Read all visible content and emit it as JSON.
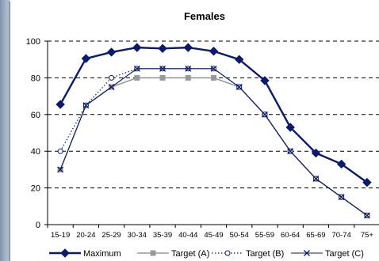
{
  "chart_data": {
    "type": "line",
    "title": "Females",
    "xlabel": "",
    "ylabel": "",
    "categories": [
      "15-19",
      "20-24",
      "25-29",
      "30-34",
      "35-39",
      "40-44",
      "45-49",
      "50-54",
      "55-59",
      "60-64",
      "65-69",
      "70-74",
      "75+"
    ],
    "ylim": [
      0,
      100
    ],
    "yticks": [
      0,
      20,
      40,
      60,
      80,
      100
    ],
    "grid": "horizontal-dashed",
    "legend_position": "bottom",
    "series": [
      {
        "name": "Maximum",
        "values": [
          65.5,
          90.5,
          94,
          96.5,
          96,
          96.5,
          94.5,
          90,
          78.5,
          53,
          39,
          33,
          23
        ],
        "color": "#0a1a6e",
        "marker": "diamond",
        "style": "solid"
      },
      {
        "name": "Target (A)",
        "values": [
          30,
          65,
          75,
          80,
          80,
          80,
          80,
          75,
          60,
          40,
          25,
          15,
          5
        ],
        "color": "#999999",
        "marker": "square",
        "style": "solid"
      },
      {
        "name": "Target (B)",
        "values": [
          40,
          65,
          80,
          85,
          85,
          85,
          85,
          75,
          60,
          40,
          25,
          15,
          5
        ],
        "color": "#0a1a6e",
        "marker": "circle",
        "style": "dotted"
      },
      {
        "name": "Target (C)",
        "values": [
          30,
          65,
          75,
          85,
          85,
          85,
          85,
          75,
          60,
          40,
          25,
          15,
          5
        ],
        "color": "#0a1a6e",
        "marker": "x",
        "style": "solid"
      }
    ]
  }
}
